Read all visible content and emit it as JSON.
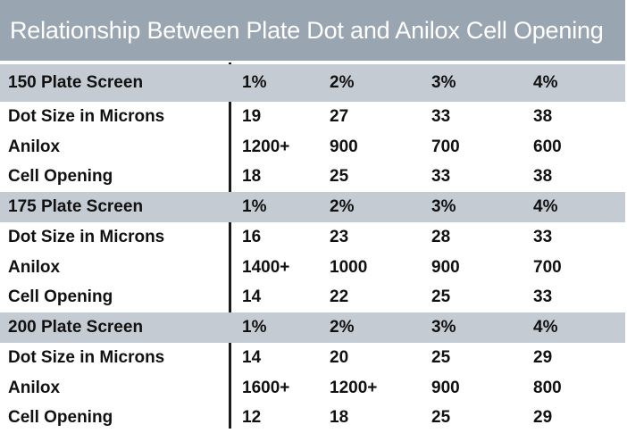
{
  "title": "Relationship Between Plate Dot and Anilox Cell Opening",
  "colors": {
    "title_bg": "#9aa5b2",
    "header_row_bg": "#c5cbd3",
    "text": "#111111"
  },
  "groups": [
    {
      "header": {
        "label": "150 Plate Screen",
        "values": [
          "1%",
          "2%",
          "3%",
          "4%"
        ]
      },
      "rows": [
        {
          "label": "Dot Size in Microns",
          "values": [
            "19",
            "27",
            "33",
            "38"
          ]
        },
        {
          "label": "Anilox",
          "values": [
            "1200+",
            "900",
            "700",
            "600"
          ]
        },
        {
          "label": "Cell Opening",
          "values": [
            "18",
            "25",
            "33",
            "38"
          ]
        }
      ]
    },
    {
      "header": {
        "label": "175 Plate Screen",
        "values": [
          "1%",
          "2%",
          "3%",
          "4%"
        ]
      },
      "rows": [
        {
          "label": "Dot Size in Microns",
          "values": [
            "16",
            "23",
            "28",
            "33"
          ]
        },
        {
          "label": "Anilox",
          "values": [
            "1400+",
            "1000",
            "900",
            "700"
          ]
        },
        {
          "label": "Cell Opening",
          "values": [
            "14",
            "22",
            "25",
            "33"
          ]
        }
      ]
    },
    {
      "header": {
        "label": "200 Plate Screen",
        "values": [
          "1%",
          "2%",
          "3%",
          "4%"
        ]
      },
      "rows": [
        {
          "label": "Dot Size in Microns",
          "values": [
            "14",
            "20",
            "25",
            "29"
          ]
        },
        {
          "label": "Anilox",
          "values": [
            "1600+",
            "1200+",
            "900",
            "800"
          ]
        },
        {
          "label": "Cell Opening",
          "values": [
            "12",
            "18",
            "25",
            "29"
          ]
        }
      ]
    }
  ]
}
